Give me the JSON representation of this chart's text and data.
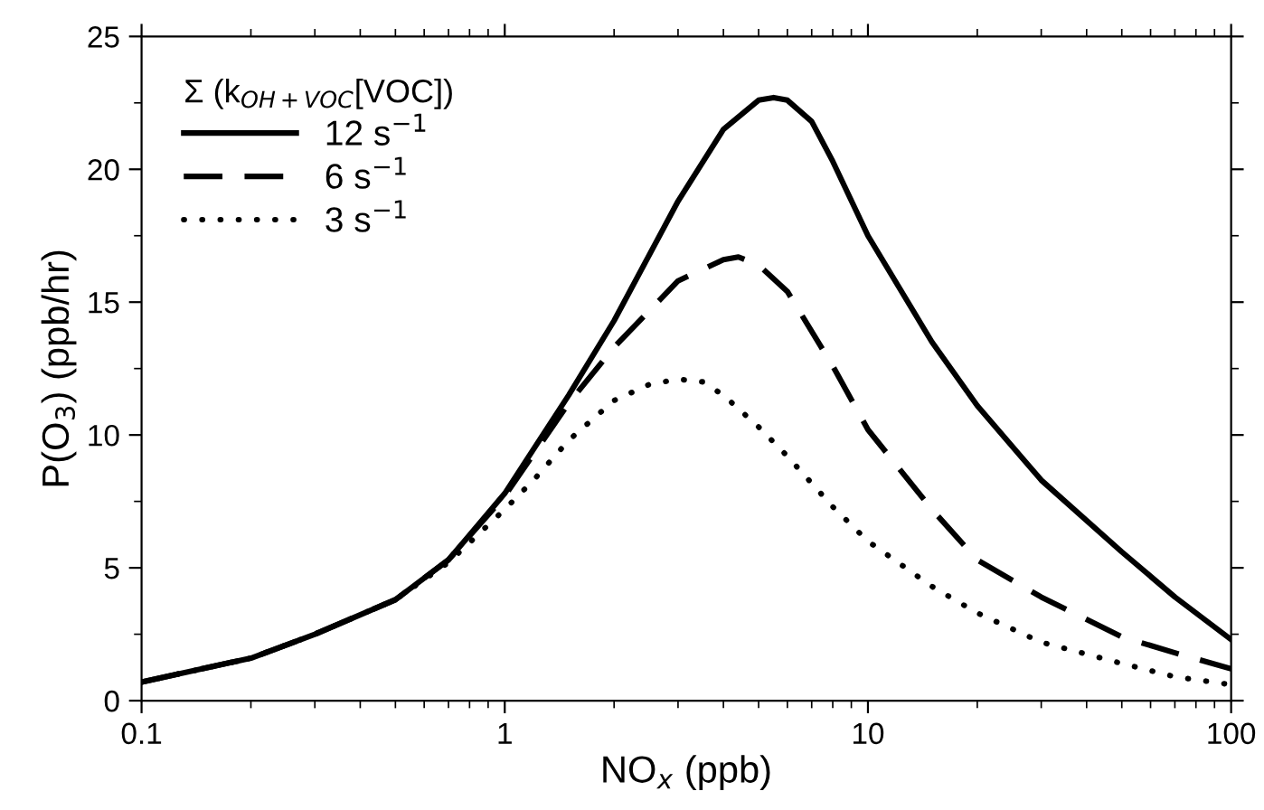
{
  "chart_data": {
    "type": "line",
    "xlabel": "NO$_{x}$ (ppb)",
    "ylabel": "P(O$_{3}$) (ppb/hr)",
    "legend_title": "Σ (k$_{OH+VOC}$[VOC])",
    "log": "x",
    "xlim": [
      0.1,
      100
    ],
    "xticks": [
      0.1,
      1,
      10,
      100
    ],
    "ylim": [
      0,
      25
    ],
    "yticks": [
      0,
      5,
      10,
      15,
      20,
      25
    ],
    "grid": false,
    "legend": "top left",
    "marker": "none",
    "series": [
      {
        "name": "12 s$^{−1}$",
        "color": "#000000",
        "line_style": "solid",
        "x": [
          0.1,
          0.2,
          0.3,
          0.5,
          0.7,
          1,
          1.5,
          2,
          3,
          4,
          5,
          5.5,
          6,
          7,
          8,
          10,
          15,
          20,
          30,
          50,
          70,
          100
        ],
        "values": [
          0.7,
          1.6,
          2.5,
          3.8,
          5.3,
          7.8,
          11.5,
          14.3,
          18.8,
          21.5,
          22.6,
          22.7,
          22.6,
          21.8,
          20.3,
          17.5,
          13.5,
          11.1,
          8.3,
          5.6,
          3.9,
          2.3
        ]
      },
      {
        "name": "6 s$^{−1}$",
        "color": "#000000",
        "line_style": "dashed",
        "x": [
          0.1,
          0.2,
          0.3,
          0.5,
          0.7,
          1,
          1.5,
          2,
          3,
          4,
          4.4,
          5,
          6,
          8,
          10,
          15,
          20,
          30,
          50,
          70,
          100
        ],
        "values": [
          0.7,
          1.6,
          2.5,
          3.8,
          5.3,
          7.7,
          11.2,
          13.3,
          15.8,
          16.6,
          16.7,
          16.4,
          15.4,
          12.6,
          10.2,
          7.2,
          5.3,
          3.9,
          2.4,
          1.8,
          1.2
        ]
      },
      {
        "name": "3 s$^{−1}$",
        "color": "#000000",
        "line_style": "dotted",
        "x": [
          0.1,
          0.2,
          0.3,
          0.5,
          0.7,
          1,
          1.2,
          1.5,
          2,
          2.5,
          3,
          3.5,
          4,
          5,
          6,
          8,
          10,
          15,
          20,
          30,
          50,
          70,
          100
        ],
        "values": [
          0.7,
          1.6,
          2.5,
          3.8,
          5.2,
          7.2,
          8.3,
          9.8,
          11.3,
          11.9,
          12.1,
          12.0,
          11.5,
          10.3,
          9.2,
          7.3,
          6.0,
          4.3,
          3.3,
          2.2,
          1.4,
          0.9,
          0.6
        ]
      }
    ]
  }
}
